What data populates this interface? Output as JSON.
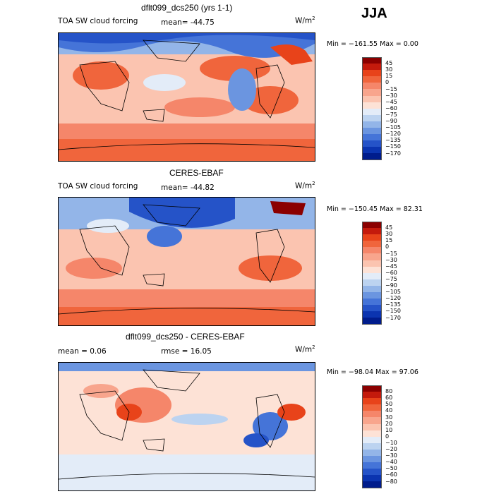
{
  "season": "JJA",
  "panels": [
    {
      "title": "dflt099_dcs250 (yrs 1-1)",
      "left_label": "TOA SW cloud forcing",
      "stat_label": "mean= -44.75",
      "units": "W/m",
      "units_exp": "2",
      "minmax": "Min = −161.55 Max =    0.00",
      "colorbar": {
        "labels": [
          "45",
          "30",
          "15",
          "0",
          "−15",
          "−30",
          "−45",
          "−60",
          "−75",
          "−90",
          "−105",
          "−120",
          "−135",
          "−150",
          "−170"
        ],
        "colors": [
          "#8b0000",
          "#c41a0c",
          "#e8431a",
          "#f0653c",
          "#f5866a",
          "#f8a58d",
          "#fbc4b0",
          "#fde2d6",
          "#e3ecf8",
          "#bcd3f0",
          "#93b5e8",
          "#6b95e0",
          "#4574d8",
          "#2553c8",
          "#0b34b0",
          "#001c8c"
        ]
      }
    },
    {
      "title": "CERES-EBAF",
      "left_label": "TOA SW cloud forcing",
      "stat_label": "mean= -44.82",
      "units": "W/m",
      "units_exp": "2",
      "minmax": "Min = −150.45 Max =  82.31",
      "colorbar": {
        "labels": [
          "45",
          "30",
          "15",
          "0",
          "−15",
          "−30",
          "−45",
          "−60",
          "−75",
          "−90",
          "−105",
          "−120",
          "−135",
          "−150",
          "−170"
        ],
        "colors": [
          "#8b0000",
          "#c41a0c",
          "#e8431a",
          "#f0653c",
          "#f5866a",
          "#f8a58d",
          "#fbc4b0",
          "#fde2d6",
          "#e3ecf8",
          "#bcd3f0",
          "#93b5e8",
          "#6b95e0",
          "#4574d8",
          "#2553c8",
          "#0b34b0",
          "#001c8c"
        ]
      }
    },
    {
      "title": "dflt099_dcs250 - CERES-EBAF",
      "left_label": "mean =   0.06",
      "stat_label": "rmse =  16.05",
      "units": "W/m",
      "units_exp": "2",
      "minmax": "Min = −98.04 Max =  97.06",
      "colorbar": {
        "labels": [
          "80",
          "60",
          "50",
          "40",
          "30",
          "20",
          "10",
          "0",
          "−10",
          "−20",
          "−30",
          "−40",
          "−50",
          "−60",
          "−80"
        ],
        "colors": [
          "#8b0000",
          "#c41a0c",
          "#e8431a",
          "#f0653c",
          "#f5866a",
          "#f8a58d",
          "#fbc4b0",
          "#fde2d6",
          "#e3ecf8",
          "#bcd3f0",
          "#93b5e8",
          "#6b95e0",
          "#4574d8",
          "#2553c8",
          "#0b34b0",
          "#001c8c"
        ]
      }
    }
  ]
}
